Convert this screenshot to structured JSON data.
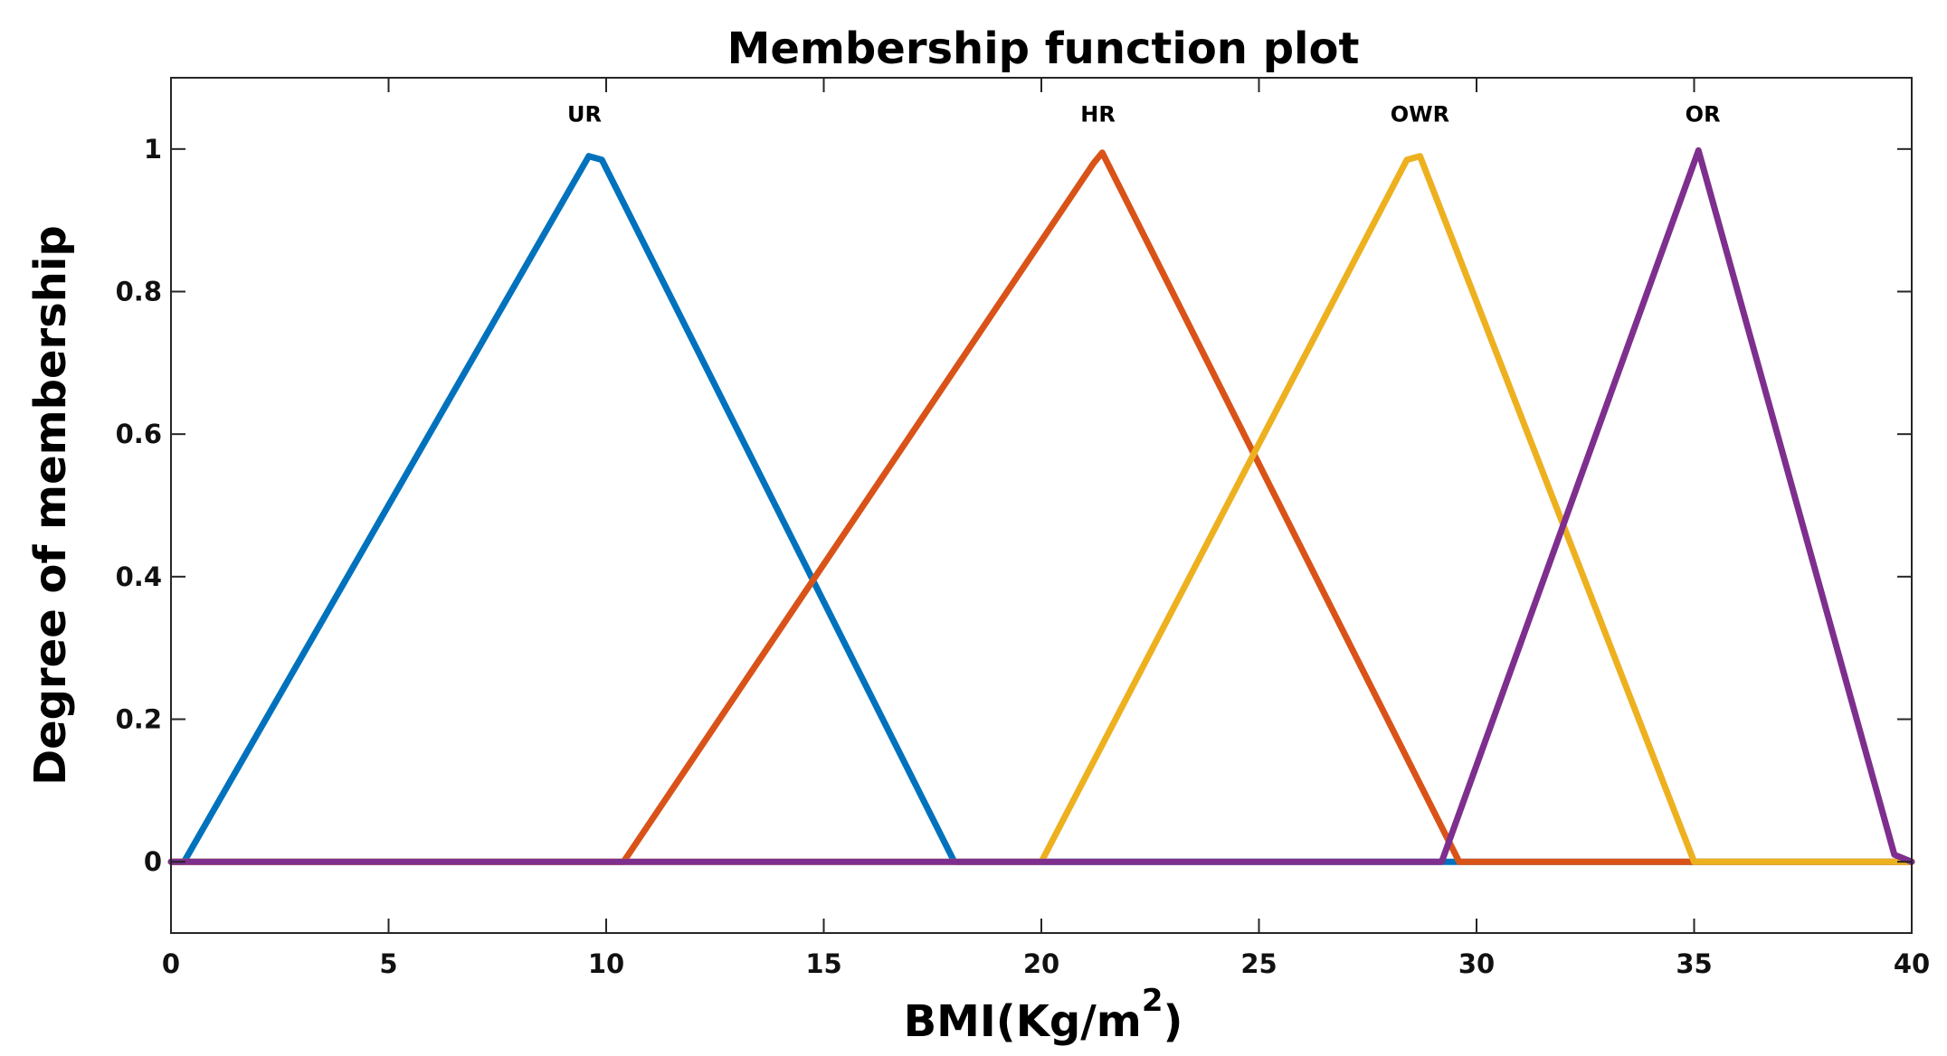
{
  "chart_data": {
    "type": "line",
    "title": "Membership function plot",
    "xlabel": "BMI(Kg/m",
    "xlabel_superscript": "2",
    "xlabel_close": ")",
    "ylabel": "Degree of membership",
    "xlim": [
      0,
      40
    ],
    "ylim": [
      -0.1,
      1.1
    ],
    "xticks": [
      0,
      5,
      10,
      15,
      20,
      25,
      30,
      35,
      40
    ],
    "yticks": [
      0,
      0.2,
      0.4,
      0.6,
      0.8,
      1
    ],
    "ytick_labels": [
      "0",
      "0.2",
      "0.4",
      "0.6",
      "0.8",
      "1"
    ],
    "grid": false,
    "series": [
      {
        "name": "UR",
        "color": "#0072BD",
        "x": [
          0,
          0.3,
          9.6,
          9.9,
          18,
          40
        ],
        "y": [
          0,
          0,
          0.99,
          0.985,
          0,
          0
        ]
      },
      {
        "name": "HR",
        "color": "#D95319",
        "x": [
          0,
          10.4,
          21.2,
          21.4,
          29.6,
          35,
          40
        ],
        "y": [
          0,
          0,
          0.98,
          0.995,
          0,
          0,
          0
        ]
      },
      {
        "name": "OWR",
        "color": "#EDB120",
        "x": [
          0,
          20,
          28.4,
          28.7,
          35,
          40
        ],
        "y": [
          0,
          0,
          0.985,
          0.99,
          0,
          0
        ]
      },
      {
        "name": "OR",
        "color": "#7E2F8E",
        "x": [
          0,
          29.2,
          35.1,
          39.6,
          40
        ],
        "y": [
          0,
          0,
          0.998,
          0.01,
          0
        ]
      }
    ],
    "labels": [
      {
        "text": "UR",
        "x": 9.5,
        "y": 1.05
      },
      {
        "text": "HR",
        "x": 21.3,
        "y": 1.05
      },
      {
        "text": "OWR",
        "x": 28.7,
        "y": 1.05
      },
      {
        "text": "OR",
        "x": 35.2,
        "y": 1.05
      }
    ]
  }
}
